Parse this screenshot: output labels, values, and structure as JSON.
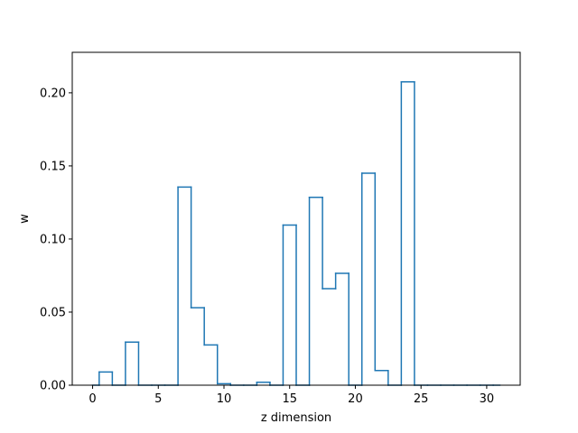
{
  "chart_data": {
    "type": "line",
    "drawstyle": "steps-mid",
    "title": "",
    "xlabel": "z dimension",
    "ylabel": "w",
    "xlim": [
      -1.55,
      32.55
    ],
    "ylim": [
      0,
      0.2277
    ],
    "x_ticks": [
      0,
      5,
      10,
      15,
      20,
      25,
      30
    ],
    "y_ticks": [
      0.0,
      0.05,
      0.1,
      0.15,
      0.2
    ],
    "y_tick_labels": [
      "0.00",
      "0.05",
      "0.10",
      "0.15",
      "0.20"
    ],
    "grid": false,
    "legend": "none",
    "line_color": "#1f77b4",
    "x": [
      0,
      1,
      2,
      3,
      4,
      5,
      6,
      7,
      8,
      9,
      10,
      11,
      12,
      13,
      14,
      15,
      16,
      17,
      18,
      19,
      20,
      21,
      22,
      23,
      24,
      25,
      26,
      27,
      28,
      29,
      30,
      31
    ],
    "y": [
      0,
      0.009,
      0,
      0.0295,
      0,
      0,
      0,
      0.1355,
      0.053,
      0.0275,
      0.001,
      0,
      0,
      0.002,
      0,
      0.1095,
      0,
      0.1285,
      0.066,
      0.0765,
      0,
      0.145,
      0.01,
      0,
      0.2075,
      0,
      0,
      0,
      0,
      0,
      0,
      0
    ]
  }
}
